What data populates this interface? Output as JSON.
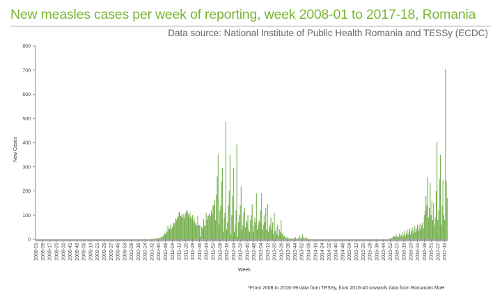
{
  "title": "New measles cases per week of reporting, week 2008-01 to 2017-18, Romania",
  "source": "Data source: National Institute of Public Health Romania and TESSy (ECDC)",
  "footnote": "*From 2008 to 2016-39 data from TESSy, from 2016-40 onwards data from Romanian MoH",
  "colors": {
    "bars": "#6fac46",
    "title": "#7ab535"
  },
  "chart_data": {
    "type": "bar",
    "xlabel": "Week",
    "ylabel": "New Cases",
    "ylim": [
      0,
      800
    ],
    "yticks": [
      0,
      100,
      200,
      300,
      400,
      500,
      600,
      700,
      800
    ],
    "grid": false,
    "x_range": [
      "2008-01",
      "2017-18"
    ],
    "tick_labels": [
      "2008-01",
      "2008-09",
      "2008-17",
      "2008-25",
      "2008-33",
      "2008-41",
      "2008-49",
      "2009-05",
      "2009-13",
      "2009-21",
      "2009-29",
      "2009-37",
      "2009-45",
      "2009-53",
      "2010-08",
      "2010-16",
      "2010-24",
      "2010-32",
      "2010-40",
      "2010-48",
      "2011-04",
      "2011-12",
      "2011-20",
      "2011-28",
      "2011-36",
      "2011-44",
      "2011-52",
      "2012-08",
      "2012-16",
      "2012-24",
      "2012-32",
      "2012-40",
      "2012-48",
      "2013-04",
      "2013-12",
      "2013-20",
      "2013-28",
      "2013-36",
      "2013-44",
      "2013-52",
      "2014-08",
      "2014-16",
      "2014-24",
      "2014-32",
      "2014-40",
      "2014-48",
      "2015-04",
      "2015-12",
      "2015-20",
      "2015-28",
      "2015-36",
      "2015-44",
      "2015-52",
      "2016-07",
      "2016-15",
      "2016-23",
      "2016-31",
      "2016-39",
      "2016-51",
      "2017-07",
      "2017-15"
    ],
    "values": [
      0,
      0,
      0,
      0,
      0,
      0,
      0,
      0,
      0,
      0,
      0,
      0,
      0,
      0,
      0,
      0,
      0,
      0,
      0,
      0,
      0,
      0,
      0,
      0,
      0,
      0,
      0,
      0,
      0,
      0,
      0,
      0,
      0,
      0,
      0,
      0,
      0,
      0,
      0,
      0,
      0,
      0,
      0,
      0,
      0,
      0,
      0,
      0,
      0,
      0,
      0,
      0,
      0,
      0,
      0,
      0,
      0,
      0,
      0,
      0,
      0,
      0,
      0,
      0,
      0,
      0,
      0,
      0,
      0,
      0,
      0,
      0,
      0,
      0,
      0,
      0,
      0,
      0,
      0,
      0,
      0,
      0,
      0,
      0,
      0,
      0,
      0,
      0,
      0,
      0,
      0,
      0,
      0,
      0,
      0,
      0,
      0,
      0,
      0,
      0,
      0,
      0,
      0,
      0,
      0,
      0,
      0,
      0,
      0,
      0,
      0,
      0,
      0,
      0,
      0,
      0,
      0,
      0,
      0,
      0,
      0,
      0,
      0,
      0,
      0,
      0,
      0,
      0,
      0,
      0,
      0,
      0,
      0,
      0,
      0,
      1,
      1,
      2,
      1,
      3,
      2,
      4,
      3,
      5,
      4,
      6,
      5,
      8,
      12,
      10,
      18,
      25,
      20,
      35,
      30,
      55,
      40,
      45,
      60,
      40,
      50,
      55,
      70,
      65,
      85,
      80,
      90,
      95,
      110,
      115,
      95,
      100,
      90,
      105,
      85,
      100,
      110,
      120,
      115,
      105,
      90,
      110,
      95,
      85,
      100,
      75,
      90,
      65,
      70,
      55,
      95,
      60,
      58,
      10,
      55,
      50,
      45,
      85,
      60,
      55,
      110,
      80,
      95,
      100,
      110,
      95,
      120,
      105,
      140,
      140,
      165,
      80,
      185,
      260,
      352,
      60,
      120,
      140,
      240,
      296,
      30,
      90,
      110,
      487,
      40,
      70,
      140,
      200,
      348,
      20,
      100,
      180,
      296,
      30,
      60,
      120,
      392,
      10,
      70,
      100,
      140,
      219,
      40,
      60,
      110,
      130,
      50,
      80,
      70,
      100,
      40,
      30,
      80,
      100,
      144,
      30,
      60,
      90,
      70,
      190,
      40,
      60,
      80,
      70,
      120,
      190,
      40,
      60,
      100,
      70,
      130,
      40,
      147,
      30,
      50,
      60,
      90,
      40,
      70,
      20,
      110,
      35,
      50,
      20,
      60,
      15,
      40,
      30,
      80,
      20,
      25,
      10,
      15,
      8,
      5,
      10,
      3,
      5,
      2,
      4,
      3,
      2,
      3,
      5,
      2,
      8,
      3,
      2,
      6,
      4,
      15,
      5,
      3,
      20,
      8,
      5,
      3,
      10,
      4,
      2,
      3,
      0,
      0,
      0,
      0,
      0,
      0,
      0,
      0,
      0,
      0,
      0,
      0,
      0,
      0,
      0,
      0,
      0,
      0,
      0,
      0,
      0,
      0,
      0,
      0,
      0,
      0,
      0,
      0,
      0,
      0,
      0,
      0,
      0,
      0,
      0,
      0,
      0,
      0,
      0,
      0,
      0,
      0,
      0,
      0,
      0,
      0,
      0,
      0,
      0,
      0,
      0,
      0,
      0,
      0,
      0,
      0,
      0,
      0,
      0,
      0,
      0,
      0,
      0,
      0,
      0,
      0,
      0,
      0,
      0,
      0,
      0,
      0,
      0,
      0,
      0,
      0,
      0,
      0,
      0,
      0,
      0,
      0,
      0,
      0,
      0,
      0,
      0,
      0,
      0,
      0,
      0,
      0,
      0,
      2,
      0,
      3,
      5,
      5,
      8,
      15,
      10,
      12,
      20,
      8,
      15,
      10,
      25,
      12,
      18,
      30,
      10,
      20,
      35,
      15,
      25,
      40,
      18,
      30,
      45,
      20,
      35,
      50,
      25,
      40,
      55,
      30,
      45,
      60,
      35,
      50,
      65,
      40,
      60,
      70,
      45,
      100,
      120,
      180,
      140,
      257,
      90,
      130,
      233,
      100,
      160,
      80,
      150,
      60,
      90,
      200,
      403,
      80,
      120,
      250,
      348,
      60,
      140,
      245,
      100,
      80,
      705,
      240,
      170
    ]
  }
}
